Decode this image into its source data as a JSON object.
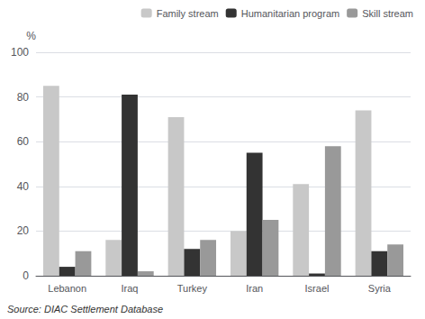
{
  "chart_data": {
    "type": "bar",
    "categories": [
      "Lebanon",
      "Iraq",
      "Turkey",
      "Iran",
      "Israel",
      "Syria"
    ],
    "series": [
      {
        "name": "Family stream",
        "color": "#c8c8c8",
        "values": [
          85,
          16,
          71,
          20,
          41,
          74
        ]
      },
      {
        "name": "Humanitarian program",
        "color": "#333333",
        "values": [
          4,
          81,
          12,
          55,
          1,
          11
        ]
      },
      {
        "name": "Skill stream",
        "color": "#999999",
        "values": [
          11,
          2,
          16,
          25,
          58,
          14
        ]
      }
    ],
    "ylabel": "%",
    "ylim": [
      0,
      100
    ],
    "yticks": [
      0,
      20,
      40,
      60,
      80,
      100
    ],
    "grid": true,
    "legend": "upper right",
    "annotations": [
      "Source: DIAC Settlement Database"
    ]
  }
}
